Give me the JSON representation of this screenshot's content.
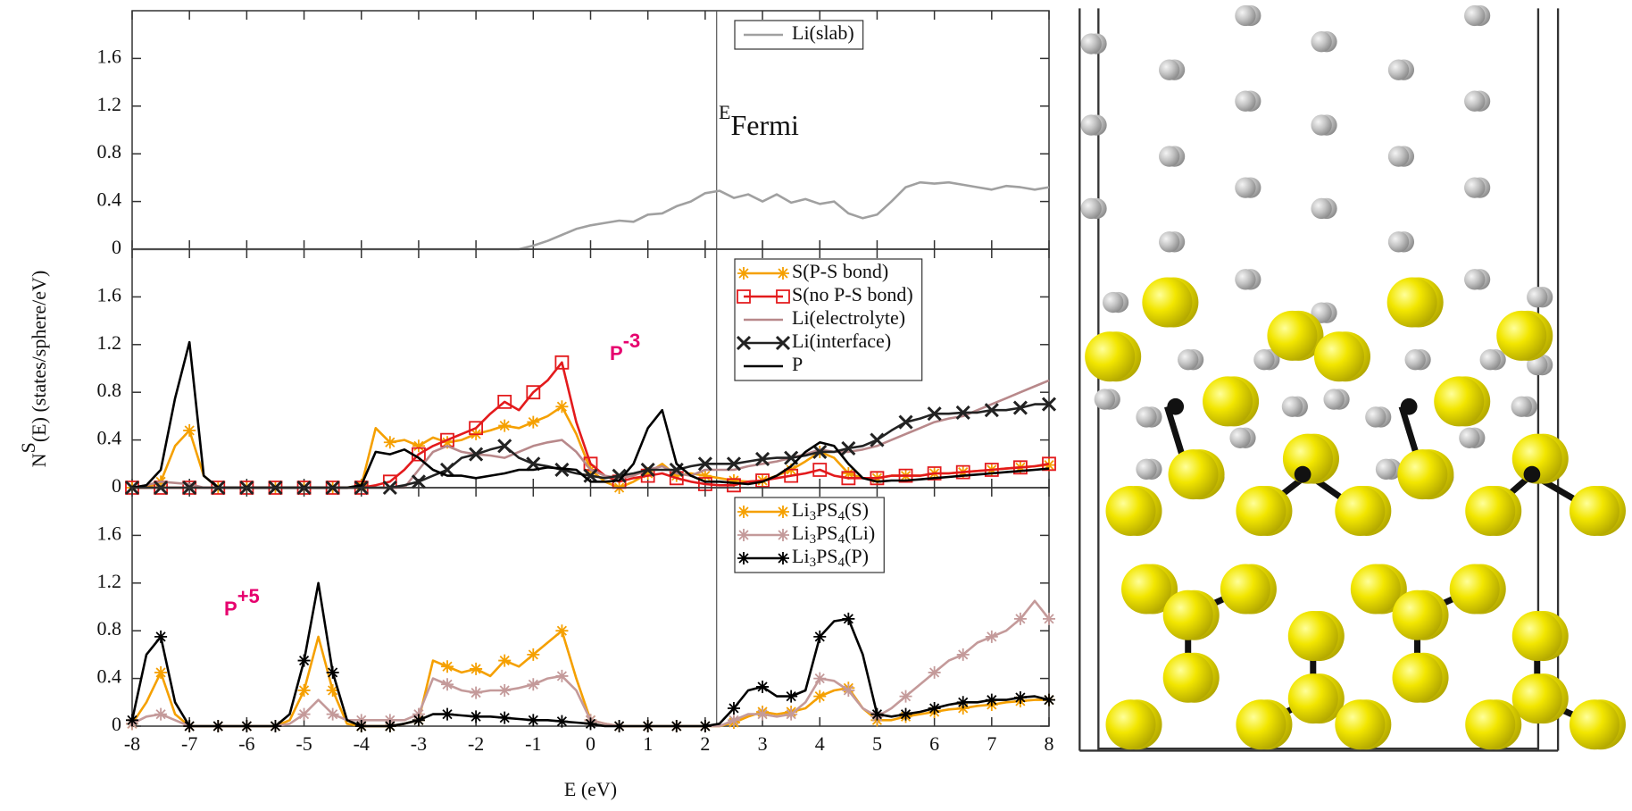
{
  "chart_data": [
    {
      "type": "line",
      "xlim": [
        -8,
        8
      ],
      "ylim": [
        0,
        2
      ],
      "xticks": [
        -8,
        -7,
        -6,
        -5,
        -4,
        -3,
        -2,
        -1,
        0,
        1,
        2,
        3,
        4,
        5,
        6,
        7,
        8
      ],
      "xtick_labels": false,
      "yticks": [
        0,
        0.4,
        0.8,
        1.2,
        1.6
      ],
      "vline": 2.2,
      "legend": "upper right",
      "annotation": [
        "E",
        "Fermi"
      ],
      "x": [
        -8,
        -7.75,
        -7.5,
        -7.25,
        -7,
        -6.75,
        -6.5,
        -6.25,
        -6,
        -5.75,
        -5.5,
        -5.25,
        -5,
        -4.75,
        -4.5,
        -4.25,
        -4,
        -3.75,
        -3.5,
        -3.25,
        -3,
        -2.75,
        -2.5,
        -2.25,
        -2,
        -1.75,
        -1.5,
        -1.25,
        -1,
        -0.75,
        -0.5,
        -0.25,
        0,
        0.25,
        0.5,
        0.75,
        1,
        1.25,
        1.5,
        1.75,
        2,
        2.25,
        2.5,
        2.75,
        3,
        3.25,
        3.5,
        3.75,
        4,
        4.25,
        4.5,
        4.75,
        5,
        5.25,
        5.5,
        5.75,
        6,
        6.25,
        6.5,
        6.75,
        7,
        7.25,
        7.5,
        7.75,
        8
      ],
      "series": [
        {
          "name": "Li(slab)",
          "color": "#a0a0a0",
          "values": [
            0,
            0,
            0,
            0,
            0,
            0,
            0,
            0,
            0,
            0,
            0,
            0,
            0,
            0,
            0,
            0,
            0,
            0,
            0,
            0,
            0,
            0,
            0,
            0,
            0,
            0,
            0,
            0,
            0.03,
            0.07,
            0.12,
            0.17,
            0.2,
            0.22,
            0.24,
            0.23,
            0.29,
            0.3,
            0.36,
            0.4,
            0.47,
            0.49,
            0.43,
            0.46,
            0.4,
            0.46,
            0.39,
            0.42,
            0.38,
            0.4,
            0.3,
            0.26,
            0.29,
            0.4,
            0.52,
            0.56,
            0.55,
            0.56,
            0.54,
            0.52,
            0.5,
            0.53,
            0.52,
            0.5,
            0.52
          ]
        }
      ]
    },
    {
      "type": "line",
      "xlim": [
        -8,
        8
      ],
      "ylim": [
        0,
        2
      ],
      "xticks": [
        -8,
        -7,
        -6,
        -5,
        -4,
        -3,
        -2,
        -1,
        0,
        1,
        2,
        3,
        4,
        5,
        6,
        7,
        8
      ],
      "xtick_labels": false,
      "yticks": [
        0,
        0.4,
        0.8,
        1.2,
        1.6
      ],
      "vline": 2.2,
      "legend": "upper right",
      "annotation": [
        "P",
        "-3"
      ],
      "ylabel": [
        "N",
        "S",
        "(E) (states/sphere/eV)"
      ],
      "x": [
        -8,
        -7.75,
        -7.5,
        -7.25,
        -7,
        -6.75,
        -6.5,
        -6.25,
        -6,
        -5.75,
        -5.5,
        -5.25,
        -5,
        -4.75,
        -4.5,
        -4.25,
        -4,
        -3.75,
        -3.5,
        -3.25,
        -3,
        -2.75,
        -2.5,
        -2.25,
        -2,
        -1.75,
        -1.5,
        -1.25,
        -1,
        -0.75,
        -0.5,
        -0.25,
        0,
        0.25,
        0.5,
        0.75,
        1,
        1.25,
        1.5,
        1.75,
        2,
        2.25,
        2.5,
        2.75,
        3,
        3.25,
        3.5,
        3.75,
        4,
        4.25,
        4.5,
        4.75,
        5,
        5.25,
        5.5,
        5.75,
        6,
        6.25,
        6.5,
        6.75,
        7,
        7.25,
        7.5,
        7.75,
        8
      ],
      "series": [
        {
          "name": "S(P-S bond)",
          "color": "#f5a000",
          "marker": "star",
          "values": [
            0,
            0,
            0.05,
            0.35,
            0.48,
            0.1,
            0,
            0,
            0,
            0,
            0,
            0,
            0,
            0,
            0,
            0,
            0.02,
            0.5,
            0.38,
            0.4,
            0.35,
            0.42,
            0.38,
            0.4,
            0.45,
            0.48,
            0.52,
            0.5,
            0.55,
            0.6,
            0.68,
            0.45,
            0.15,
            0.05,
            0,
            0.05,
            0.12,
            0.2,
            0.1,
            0.12,
            0.1,
            0.08,
            0.06,
            0.05,
            0.06,
            0.1,
            0.15,
            0.22,
            0.3,
            0.25,
            0.12,
            0.08,
            0.08,
            0.1,
            0.1,
            0.1,
            0.12,
            0.12,
            0.13,
            0.14,
            0.15,
            0.16,
            0.17,
            0.18,
            0.19
          ]
        },
        {
          "name": "S(no P-S bond)",
          "color": "#e31a1c",
          "marker": "square",
          "values": [
            0,
            0,
            0,
            0,
            0,
            0,
            0,
            0,
            0,
            0,
            0,
            0,
            0,
            0,
            0,
            0,
            0,
            0.02,
            0.05,
            0.15,
            0.28,
            0.35,
            0.4,
            0.45,
            0.5,
            0.62,
            0.72,
            0.65,
            0.8,
            0.9,
            1.05,
            0.55,
            0.2,
            0.1,
            0.05,
            0.08,
            0.1,
            0.12,
            0.08,
            0.05,
            0.03,
            0.02,
            0.02,
            0.05,
            0.06,
            0.08,
            0.1,
            0.12,
            0.15,
            0.1,
            0.08,
            0.08,
            0.08,
            0.1,
            0.1,
            0.1,
            0.12,
            0.12,
            0.13,
            0.14,
            0.15,
            0.16,
            0.17,
            0.18,
            0.2
          ]
        },
        {
          "name": "Li(electrolyte)",
          "color": "#b8888a",
          "values": [
            0,
            0.02,
            0.05,
            0.04,
            0.03,
            0,
            0,
            0,
            0,
            0,
            0,
            0,
            0,
            0,
            0,
            0,
            0,
            0,
            0,
            0,
            0.15,
            0.3,
            0.35,
            0.3,
            0.28,
            0.27,
            0.25,
            0.3,
            0.35,
            0.38,
            0.4,
            0.3,
            0.15,
            0.1,
            0.08,
            0.1,
            0.15,
            0.18,
            0.12,
            0.1,
            0.15,
            0.15,
            0.15,
            0.18,
            0.2,
            0.22,
            0.25,
            0.28,
            0.32,
            0.3,
            0.3,
            0.32,
            0.35,
            0.4,
            0.45,
            0.5,
            0.55,
            0.58,
            0.6,
            0.65,
            0.7,
            0.75,
            0.8,
            0.85,
            0.9
          ]
        },
        {
          "name": "Li(interface)",
          "color": "#222222",
          "marker": "x",
          "values": [
            0,
            0,
            0,
            0,
            0,
            0,
            0,
            0,
            0,
            0,
            0,
            0,
            0,
            0,
            0,
            0,
            0,
            0,
            0,
            0.02,
            0.05,
            0.1,
            0.15,
            0.25,
            0.28,
            0.32,
            0.35,
            0.25,
            0.2,
            0.18,
            0.15,
            0.12,
            0.1,
            0.08,
            0.1,
            0.12,
            0.15,
            0.15,
            0.15,
            0.18,
            0.2,
            0.2,
            0.2,
            0.22,
            0.24,
            0.25,
            0.25,
            0.27,
            0.3,
            0.3,
            0.33,
            0.35,
            0.4,
            0.48,
            0.55,
            0.58,
            0.62,
            0.62,
            0.63,
            0.63,
            0.65,
            0.65,
            0.67,
            0.7,
            0.7
          ]
        },
        {
          "name": "P",
          "color": "#000000",
          "values": [
            0,
            0.02,
            0.15,
            0.75,
            1.22,
            0.1,
            0,
            0,
            0,
            0,
            0,
            0,
            0,
            0,
            0,
            0,
            0.02,
            0.3,
            0.28,
            0.32,
            0.25,
            0.15,
            0.1,
            0.1,
            0.08,
            0.1,
            0.12,
            0.15,
            0.15,
            0.17,
            0.16,
            0.15,
            0.05,
            0.05,
            0.06,
            0.2,
            0.5,
            0.65,
            0.2,
            0.1,
            0.05,
            0.05,
            0.04,
            0.03,
            0.05,
            0.1,
            0.18,
            0.3,
            0.38,
            0.35,
            0.2,
            0.08,
            0.05,
            0.06,
            0.06,
            0.07,
            0.08,
            0.09,
            0.1,
            0.11,
            0.12,
            0.13,
            0.14,
            0.15,
            0.16
          ]
        }
      ]
    },
    {
      "type": "line",
      "xlim": [
        -8,
        8
      ],
      "ylim": [
        0,
        2
      ],
      "xticks": [
        -8,
        -7,
        -6,
        -5,
        -4,
        -3,
        -2,
        -1,
        0,
        1,
        2,
        3,
        4,
        5,
        6,
        7,
        8
      ],
      "xtick_labels": true,
      "yticks": [
        0,
        0.4,
        0.8,
        1.2,
        1.6
      ],
      "vline": 2.2,
      "legend": "upper right",
      "annotation": [
        "P",
        "+5"
      ],
      "xlabel": "E (eV)",
      "x": [
        -8,
        -7.75,
        -7.5,
        -7.25,
        -7,
        -6.75,
        -6.5,
        -6.25,
        -6,
        -5.75,
        -5.5,
        -5.25,
        -5,
        -4.75,
        -4.5,
        -4.25,
        -4,
        -3.75,
        -3.5,
        -3.25,
        -3,
        -2.75,
        -2.5,
        -2.25,
        -2,
        -1.75,
        -1.5,
        -1.25,
        -1,
        -0.75,
        -0.5,
        -0.25,
        0,
        0.25,
        0.5,
        0.75,
        1,
        1.25,
        1.5,
        1.75,
        2,
        2.25,
        2.5,
        2.75,
        3,
        3.25,
        3.5,
        3.75,
        4,
        4.25,
        4.5,
        4.75,
        5,
        5.25,
        5.5,
        5.75,
        6,
        6.25,
        6.5,
        6.75,
        7,
        7.25,
        7.5,
        7.75,
        8
      ],
      "series": [
        {
          "name": "Li3PS4(S)",
          "color": "#f5a000",
          "marker": "star",
          "values": [
            0.02,
            0.2,
            0.45,
            0.1,
            0,
            0,
            0,
            0,
            0,
            0,
            0,
            0.05,
            0.3,
            0.75,
            0.3,
            0.02,
            0,
            0,
            0,
            0.02,
            0.05,
            0.55,
            0.5,
            0.45,
            0.48,
            0.42,
            0.55,
            0.5,
            0.6,
            0.7,
            0.8,
            0.4,
            0.05,
            0.02,
            0,
            0,
            0,
            0,
            0,
            0,
            0,
            0,
            0.03,
            0.08,
            0.12,
            0.1,
            0.12,
            0.15,
            0.25,
            0.3,
            0.32,
            0.15,
            0.05,
            0.05,
            0.08,
            0.1,
            0.12,
            0.14,
            0.15,
            0.17,
            0.18,
            0.2,
            0.21,
            0.22,
            0.22
          ]
        },
        {
          "name": "Li3PS4(Li)",
          "color": "#c49a9a",
          "marker": "star",
          "values": [
            0.02,
            0.08,
            0.1,
            0.05,
            0,
            0,
            0,
            0,
            0,
            0,
            0,
            0.02,
            0.1,
            0.22,
            0.1,
            0.05,
            0.05,
            0.05,
            0.05,
            0.05,
            0.1,
            0.4,
            0.35,
            0.3,
            0.28,
            0.3,
            0.3,
            0.32,
            0.35,
            0.4,
            0.42,
            0.3,
            0.05,
            0.02,
            0,
            0,
            0,
            0,
            0,
            0,
            0,
            0,
            0.05,
            0.1,
            0.1,
            0.08,
            0.1,
            0.2,
            0.4,
            0.38,
            0.3,
            0.15,
            0.08,
            0.15,
            0.25,
            0.35,
            0.45,
            0.55,
            0.6,
            0.7,
            0.75,
            0.8,
            0.9,
            1.05,
            0.9
          ]
        },
        {
          "name": "Li3PS4(P)",
          "color": "#000000",
          "marker": "star",
          "values": [
            0.05,
            0.6,
            0.75,
            0.2,
            0,
            0,
            0,
            0,
            0,
            0,
            0,
            0.1,
            0.55,
            1.2,
            0.45,
            0.05,
            0,
            0,
            0,
            0.02,
            0.05,
            0.1,
            0.1,
            0.09,
            0.08,
            0.08,
            0.07,
            0.06,
            0.05,
            0.05,
            0.04,
            0.03,
            0.02,
            0,
            0,
            0,
            0,
            0,
            0,
            0,
            0,
            0.02,
            0.15,
            0.3,
            0.33,
            0.25,
            0.25,
            0.3,
            0.75,
            0.88,
            0.9,
            0.6,
            0.1,
            0.08,
            0.1,
            0.12,
            0.15,
            0.18,
            0.2,
            0.2,
            0.22,
            0.22,
            0.24,
            0.25,
            0.22
          ]
        }
      ]
    }
  ]
}
